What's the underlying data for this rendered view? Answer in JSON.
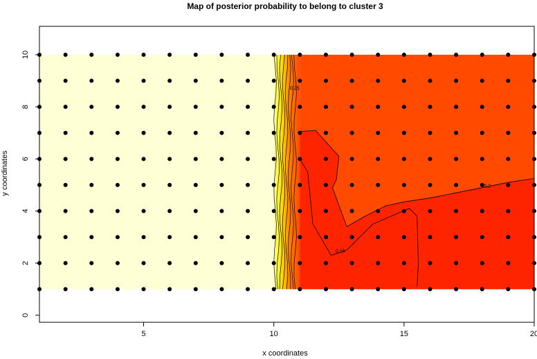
{
  "chart_data": {
    "type": "contour",
    "title": "Map of posterior probability to belong to cluster  3",
    "x_label": "x coordinates",
    "y_label": "y coordinates",
    "xlim": [
      1,
      20
    ],
    "ylim": [
      -0.27,
      11.09
    ],
    "xticks": [
      5,
      10,
      15,
      20
    ],
    "yticks": [
      0,
      2,
      4,
      6,
      8,
      10
    ],
    "grid_x": [
      1,
      2,
      3,
      4,
      5,
      6,
      7,
      8,
      9,
      10,
      11,
      12,
      13,
      14,
      15,
      16,
      17,
      18,
      19,
      20
    ],
    "grid_y": [
      1,
      2,
      3,
      4,
      5,
      6,
      7,
      8,
      9,
      10
    ],
    "point_color": "#000000",
    "colors": [
      "#FFFFD5",
      "#FFFF40",
      "#FFD000",
      "#FF8000",
      "#FF4A00",
      "#FF2400"
    ],
    "contour_labels": [
      "0.25",
      "0.2",
      "0.15"
    ]
  }
}
